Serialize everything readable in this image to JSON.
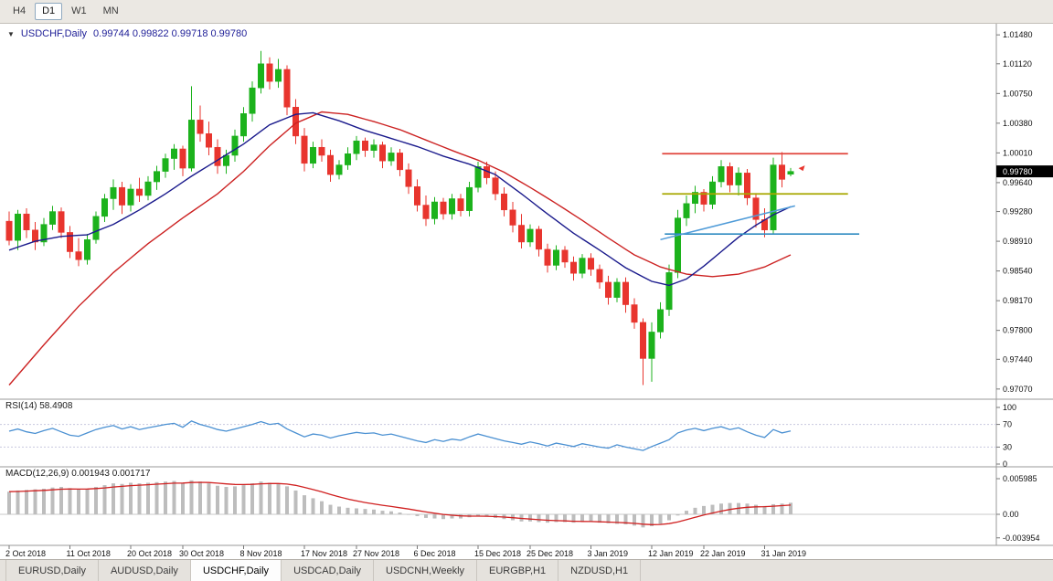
{
  "toolbar": {
    "timeframes": [
      "H4",
      "D1",
      "W1",
      "MN"
    ],
    "active_timeframe": "D1"
  },
  "chart": {
    "symbol_label": "USDCHF,Daily",
    "ohlc_text": "0.99744 0.99822 0.99718 0.99780",
    "current_price": "0.99780",
    "price_axis": [
      "1.01480",
      "1.01120",
      "1.00750",
      "1.00380",
      "1.00010",
      "0.99640",
      "0.99280",
      "0.98910",
      "0.98540",
      "0.98170",
      "0.97800",
      "0.97440",
      "0.97070"
    ],
    "time_axis": [
      {
        "label": "2 Oct 2018",
        "i": 0
      },
      {
        "label": "11 Oct 2018",
        "i": 7
      },
      {
        "label": "20 Oct 2018",
        "i": 14
      },
      {
        "label": "30 Oct 2018",
        "i": 20
      },
      {
        "label": "8 Nov 2018",
        "i": 27
      },
      {
        "label": "17 Nov 2018",
        "i": 34
      },
      {
        "label": "27 Nov 2018",
        "i": 40
      },
      {
        "label": "6 Dec 2018",
        "i": 47
      },
      {
        "label": "15 Dec 2018",
        "i": 54
      },
      {
        "label": "25 Dec 2018",
        "i": 60
      },
      {
        "label": "3 Jan 2019",
        "i": 67
      },
      {
        "label": "12 Jan 2019",
        "i": 74
      },
      {
        "label": "22 Jan 2019",
        "i": 80
      },
      {
        "label": "31 Jan 2019",
        "i": 87
      }
    ],
    "colors": {
      "up": "#1cb21c",
      "down": "#e8352e",
      "ma_slow": "#cc2222",
      "ma_fast": "#1a1a8c",
      "resistance": "#e0443c",
      "pivot": "#a8a800",
      "support": "#2e8bc0",
      "trendline": "#4f9bd8",
      "rsi_line": "#4a90d2",
      "rsi_level": "#c8c8de",
      "macd_hist": "#bdbdbd",
      "macd_signal": "#d02020",
      "price_tag_bg": "#000000",
      "price_tag_text": "#ffffff"
    },
    "hlines": [
      {
        "price": 1.0,
        "i1": 75.2,
        "i2": 96.6,
        "color_key": "resistance"
      },
      {
        "price": 0.995,
        "i1": 75.2,
        "i2": 96.6,
        "color_key": "pivot"
      },
      {
        "price": 0.99,
        "i1": 75.5,
        "i2": 97.9,
        "color_key": "support"
      }
    ],
    "trendline": {
      "i1": 75.0,
      "p1": 0.9893,
      "i2": 90.5,
      "p2": 0.9935
    },
    "arrow": {
      "i": 90.9,
      "price": 0.9982
    }
  },
  "rsi": {
    "label": "RSI(14) 58.4908",
    "axis": [
      100,
      70,
      30,
      0
    ],
    "levels": [
      70,
      30
    ]
  },
  "macd": {
    "label": "MACD(12,26,9) 0.001943 0.001717",
    "axis": [
      {
        "v": 0.005985,
        "label": "0.005985"
      },
      {
        "v": 0,
        "label": "0.00"
      },
      {
        "v": -0.003954,
        "label": "-0.003954"
      }
    ]
  },
  "tabs": {
    "items": [
      "EURUSD,Daily",
      "AUDUSD,Daily",
      "USDCHF,Daily",
      "USDCAD,Daily",
      "USDCNH,Weekly",
      "EURGBP,H1",
      "NZDUSD,H1"
    ],
    "active": "USDCHF,Daily"
  },
  "chart_data": {
    "type": "candlestick",
    "symbol": "USDCHF",
    "timeframe": "Daily",
    "ohlc_current": {
      "open": 0.99744,
      "high": 0.99822,
      "low": 0.99718,
      "close": 0.9978
    },
    "price_range_visible": [
      0.97,
      1.0155
    ],
    "candles": [
      [
        0.9916,
        0.9928,
        0.9886,
        0.9892
      ],
      [
        0.9892,
        0.993,
        0.988,
        0.9925
      ],
      [
        0.9925,
        0.9932,
        0.9895,
        0.9905
      ],
      [
        0.9905,
        0.9915,
        0.988,
        0.989
      ],
      [
        0.989,
        0.992,
        0.9885,
        0.9912
      ],
      [
        0.9912,
        0.9935,
        0.9905,
        0.9928
      ],
      [
        0.9928,
        0.9933,
        0.9895,
        0.9902
      ],
      [
        0.9902,
        0.991,
        0.987,
        0.9878
      ],
      [
        0.9878,
        0.9895,
        0.986,
        0.9868
      ],
      [
        0.9868,
        0.99,
        0.9862,
        0.9893
      ],
      [
        0.9893,
        0.9928,
        0.9888,
        0.9922
      ],
      [
        0.9922,
        0.995,
        0.9915,
        0.9944
      ],
      [
        0.9944,
        0.9968,
        0.993,
        0.9958
      ],
      [
        0.9958,
        0.9965,
        0.9925,
        0.9936
      ],
      [
        0.9936,
        0.9962,
        0.9928,
        0.9956
      ],
      [
        0.9956,
        0.997,
        0.994,
        0.9948
      ],
      [
        0.9948,
        0.9972,
        0.9942,
        0.9965
      ],
      [
        0.9965,
        0.9985,
        0.9955,
        0.9978
      ],
      [
        0.9978,
        1.0,
        0.997,
        0.9994
      ],
      [
        0.9994,
        1.0012,
        0.998,
        1.0006
      ],
      [
        1.0006,
        1.001,
        0.9972,
        0.9982
      ],
      [
        0.9982,
        1.0084,
        0.9978,
        1.0042
      ],
      [
        1.0042,
        1.006,
        1.0015,
        1.0025
      ],
      [
        1.0025,
        1.004,
        0.9998,
        1.0008
      ],
      [
        1.0008,
        1.0018,
        0.9975,
        0.9985
      ],
      [
        0.9985,
        1.0005,
        0.9975,
        0.9998
      ],
      [
        0.9998,
        1.003,
        0.999,
        1.0022
      ],
      [
        1.0022,
        1.0058,
        1.0015,
        1.005
      ],
      [
        1.005,
        1.009,
        1.004,
        1.0082
      ],
      [
        1.0082,
        1.0128,
        1.0075,
        1.0112
      ],
      [
        1.0112,
        1.012,
        1.008,
        1.009
      ],
      [
        1.009,
        1.0118,
        1.0082,
        1.0105
      ],
      [
        1.0105,
        1.011,
        1.0048,
        1.0058
      ],
      [
        1.0058,
        1.0068,
        1.0012,
        1.0022
      ],
      [
        1.0022,
        1.0032,
        0.9978,
        0.9988
      ],
      [
        0.9988,
        1.0015,
        0.9982,
        1.0008
      ],
      [
        1.0008,
        1.0018,
        0.999,
        0.9998
      ],
      [
        0.9998,
        1.0005,
        0.9965,
        0.9974
      ],
      [
        0.9974,
        0.9992,
        0.9968,
        0.9986
      ],
      [
        0.9986,
        1.0008,
        0.998,
        1.0
      ],
      [
        1.0,
        1.0022,
        0.9992,
        1.0016
      ],
      [
        1.0016,
        1.002,
        0.9996,
        1.0004
      ],
      [
        1.0004,
        1.0018,
        0.9995,
        1.0011
      ],
      [
        1.0011,
        1.0015,
        0.9982,
        0.9991
      ],
      [
        0.9991,
        1.0008,
        0.9985,
        1.0001
      ],
      [
        1.0001,
        1.0006,
        0.9972,
        0.998
      ],
      [
        0.998,
        0.9988,
        0.995,
        0.9959
      ],
      [
        0.9959,
        0.9968,
        0.9928,
        0.9936
      ],
      [
        0.9936,
        0.9948,
        0.991,
        0.9919
      ],
      [
        0.9919,
        0.9946,
        0.9912,
        0.994
      ],
      [
        0.994,
        0.9945,
        0.9918,
        0.9925
      ],
      [
        0.9925,
        0.995,
        0.9918,
        0.9944
      ],
      [
        0.9944,
        0.995,
        0.9922,
        0.9929
      ],
      [
        0.9929,
        0.9965,
        0.9922,
        0.9958
      ],
      [
        0.9958,
        0.999,
        0.9952,
        0.9984
      ],
      [
        0.9984,
        0.999,
        0.9962,
        0.997
      ],
      [
        0.997,
        0.9978,
        0.9942,
        0.995
      ],
      [
        0.995,
        0.9958,
        0.9922,
        0.993
      ],
      [
        0.993,
        0.994,
        0.9902,
        0.9911
      ],
      [
        0.9911,
        0.9925,
        0.9882,
        0.989
      ],
      [
        0.989,
        0.9912,
        0.9884,
        0.9906
      ],
      [
        0.9906,
        0.991,
        0.9872,
        0.9881
      ],
      [
        0.9881,
        0.9888,
        0.9852,
        0.9861
      ],
      [
        0.9861,
        0.9886,
        0.9855,
        0.988
      ],
      [
        0.988,
        0.9885,
        0.9858,
        0.9865
      ],
      [
        0.9865,
        0.9872,
        0.9842,
        0.9851
      ],
      [
        0.9851,
        0.9875,
        0.9845,
        0.987
      ],
      [
        0.987,
        0.9876,
        0.9848,
        0.9856
      ],
      [
        0.9856,
        0.9862,
        0.9832,
        0.984
      ],
      [
        0.984,
        0.9848,
        0.9812,
        0.9821
      ],
      [
        0.9821,
        0.9845,
        0.9815,
        0.984
      ],
      [
        0.984,
        0.9846,
        0.9802,
        0.9812
      ],
      [
        0.9812,
        0.982,
        0.9782,
        0.979
      ],
      [
        0.979,
        0.9795,
        0.9712,
        0.9745
      ],
      [
        0.9745,
        0.979,
        0.9716,
        0.9778
      ],
      [
        0.9778,
        0.9815,
        0.977,
        0.9806
      ],
      [
        0.9806,
        0.9862,
        0.9798,
        0.9852
      ],
      [
        0.9852,
        0.993,
        0.9845,
        0.992
      ],
      [
        0.992,
        0.9948,
        0.991,
        0.9938
      ],
      [
        0.9938,
        0.996,
        0.9926,
        0.9952
      ],
      [
        0.9952,
        0.9956,
        0.9928,
        0.9937
      ],
      [
        0.9937,
        0.9972,
        0.9931,
        0.9965
      ],
      [
        0.9965,
        0.9992,
        0.9958,
        0.9984
      ],
      [
        0.9984,
        0.9989,
        0.9952,
        0.9961
      ],
      [
        0.9961,
        0.9983,
        0.9948,
        0.9976
      ],
      [
        0.9976,
        0.9981,
        0.9936,
        0.9945
      ],
      [
        0.9945,
        0.9951,
        0.9908,
        0.9918
      ],
      [
        0.9918,
        0.9932,
        0.9896,
        0.9905
      ],
      [
        0.9905,
        0.9995,
        0.99,
        0.9986
      ],
      [
        0.9986,
        1.0002,
        0.9958,
        0.9968
      ],
      [
        0.99744,
        0.99822,
        0.99718,
        0.9978
      ]
    ],
    "ma_slow_red": [
      [
        0,
        0.9712
      ],
      [
        4,
        0.9762
      ],
      [
        8,
        0.981
      ],
      [
        12,
        0.9852
      ],
      [
        16,
        0.9888
      ],
      [
        20,
        0.992
      ],
      [
        24,
        0.995
      ],
      [
        27,
        0.9978
      ],
      [
        30,
        1.001
      ],
      [
        33,
        1.0038
      ],
      [
        36,
        1.0052
      ],
      [
        39,
        1.0049
      ],
      [
        42,
        1.004
      ],
      [
        45,
        1.003
      ],
      [
        48,
        1.0017
      ],
      [
        51,
        1.0004
      ],
      [
        54,
        0.9992
      ],
      [
        57,
        0.9977
      ],
      [
        60,
        0.9958
      ],
      [
        63,
        0.9938
      ],
      [
        66,
        0.9917
      ],
      [
        69,
        0.9895
      ],
      [
        72,
        0.9874
      ],
      [
        75,
        0.9859
      ],
      [
        78,
        0.985
      ],
      [
        81,
        0.9847
      ],
      [
        84,
        0.985
      ],
      [
        87,
        0.9859
      ],
      [
        90,
        0.9874
      ]
    ],
    "ma_fast_navy": [
      [
        0,
        0.988
      ],
      [
        3,
        0.9891
      ],
      [
        6,
        0.9897
      ],
      [
        9,
        0.9899
      ],
      [
        12,
        0.9912
      ],
      [
        15,
        0.993
      ],
      [
        18,
        0.995
      ],
      [
        21,
        0.9972
      ],
      [
        24,
        0.9992
      ],
      [
        27,
        1.0012
      ],
      [
        30,
        1.0036
      ],
      [
        33,
        1.0049
      ],
      [
        35,
        1.0051
      ],
      [
        38,
        1.0041
      ],
      [
        41,
        1.0029
      ],
      [
        44,
        1.0019
      ],
      [
        47,
        1.0009
      ],
      [
        50,
        0.9997
      ],
      [
        53,
        0.9987
      ],
      [
        56,
        0.9974
      ],
      [
        59,
        0.995
      ],
      [
        62,
        0.9925
      ],
      [
        65,
        0.9901
      ],
      [
        68,
        0.988
      ],
      [
        71,
        0.9858
      ],
      [
        74,
        0.9841
      ],
      [
        76,
        0.9836
      ],
      [
        78,
        0.9844
      ],
      [
        80,
        0.986
      ],
      [
        82,
        0.9878
      ],
      [
        84,
        0.9896
      ],
      [
        86,
        0.9911
      ],
      [
        88,
        0.9924
      ],
      [
        90,
        0.9934
      ]
    ],
    "rsi_values": [
      58,
      62,
      57,
      54,
      59,
      63,
      57,
      51,
      49,
      55,
      61,
      65,
      68,
      62,
      66,
      61,
      64,
      67,
      70,
      72,
      65,
      76,
      70,
      66,
      61,
      58,
      62,
      66,
      70,
      75,
      70,
      72,
      62,
      55,
      48,
      53,
      51,
      46,
      50,
      53,
      56,
      54,
      55,
      51,
      53,
      49,
      45,
      41,
      38,
      43,
      40,
      44,
      42,
      48,
      53,
      49,
      45,
      41,
      38,
      35,
      39,
      36,
      32,
      37,
      34,
      31,
      36,
      33,
      30,
      28,
      34,
      30,
      27,
      24,
      31,
      37,
      43,
      55,
      60,
      63,
      59,
      63,
      66,
      61,
      64,
      57,
      51,
      47,
      61,
      55,
      58.49
    ],
    "macd_hist": [
      0.0038,
      0.004,
      0.0041,
      0.0042,
      0.0043,
      0.0045,
      0.0046,
      0.0044,
      0.0042,
      0.0043,
      0.0046,
      0.0049,
      0.0052,
      0.0051,
      0.0053,
      0.0052,
      0.0053,
      0.0054,
      0.0055,
      0.0056,
      0.0053,
      0.0057,
      0.0055,
      0.0052,
      0.0048,
      0.0046,
      0.0047,
      0.0049,
      0.0052,
      0.0055,
      0.0053,
      0.0052,
      0.0047,
      0.004,
      0.0032,
      0.0027,
      0.0022,
      0.0016,
      0.0013,
      0.0011,
      0.001,
      0.0009,
      0.0008,
      0.0006,
      0.0005,
      0.0003,
      0.0,
      -0.0003,
      -0.0006,
      -0.0007,
      -0.0008,
      -0.0007,
      -0.0007,
      -0.0005,
      -0.0003,
      -0.0004,
      -0.0006,
      -0.0008,
      -0.001,
      -0.0012,
      -0.0012,
      -0.0013,
      -0.0014,
      -0.0013,
      -0.0013,
      -0.0014,
      -0.0013,
      -0.0013,
      -0.0014,
      -0.0015,
      -0.0016,
      -0.0017,
      -0.0019,
      -0.0022,
      -0.002,
      -0.0016,
      -0.001,
      -0.0002,
      0.0006,
      0.0011,
      0.0014,
      0.0016,
      0.0018,
      0.0019,
      0.0019,
      0.0018,
      0.0016,
      0.0014,
      0.0017,
      0.0018,
      0.001943
    ]
  }
}
